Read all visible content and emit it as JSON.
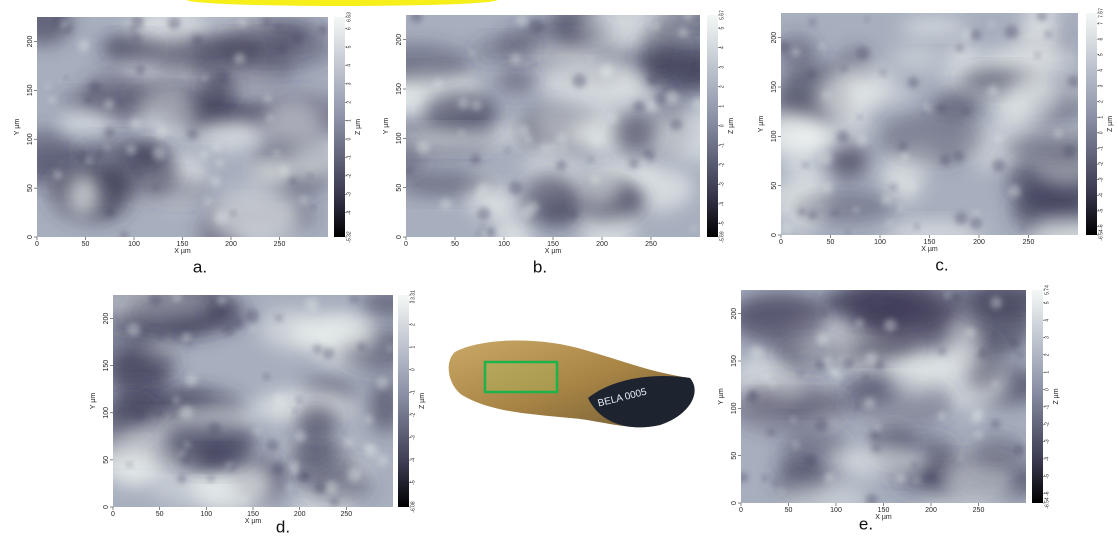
{
  "panels": [
    {
      "label": "a.",
      "x_axis_label": "X µm",
      "y_axis_label": "Y µm",
      "z_axis_label": "Z µm",
      "xlim": [
        0,
        300
      ],
      "ylim": [
        0,
        225
      ],
      "xticks": [
        0,
        50,
        100,
        150,
        200,
        250
      ],
      "yticks": [
        0,
        50,
        100,
        150,
        200
      ],
      "zlim": [
        -5.32,
        6.63
      ],
      "zticks": [
        -5.32,
        -4,
        -3,
        -2,
        -1,
        0,
        1,
        2,
        3,
        4,
        5,
        6,
        6.63
      ]
    },
    {
      "label": "b.",
      "x_axis_label": "X µm",
      "y_axis_label": "Y µm",
      "z_axis_label": "Z µm",
      "xlim": [
        0,
        300
      ],
      "ylim": [
        0,
        225
      ],
      "xticks": [
        0,
        50,
        100,
        150,
        200,
        250
      ],
      "yticks": [
        0,
        50,
        100,
        150,
        200
      ],
      "zlim": [
        -5.69,
        5.67
      ],
      "zticks": [
        -5.69,
        -5,
        -4,
        -3,
        -2,
        -1,
        0,
        1,
        2,
        3,
        4,
        5,
        5.67
      ]
    },
    {
      "label": "c.",
      "x_axis_label": "X µm",
      "y_axis_label": "Y µm",
      "z_axis_label": "Z µm",
      "xlim": [
        0,
        300
      ],
      "ylim": [
        0,
        225
      ],
      "xticks": [
        0,
        50,
        100,
        150,
        200,
        250
      ],
      "yticks": [
        0,
        50,
        100,
        150,
        200
      ],
      "zlim": [
        -6.54,
        7.67
      ],
      "zticks": [
        -6.54,
        -6,
        -5,
        -4,
        -3,
        -2,
        -1,
        0,
        1,
        2,
        3,
        4,
        5,
        6,
        7,
        7.67
      ]
    },
    {
      "label": "d.",
      "x_axis_label": "X µm",
      "y_axis_label": "Y µm",
      "z_axis_label": "Z µm",
      "xlim": [
        0,
        300
      ],
      "ylim": [
        0,
        225
      ],
      "xticks": [
        0,
        50,
        100,
        150,
        200,
        250
      ],
      "yticks": [
        0,
        50,
        100,
        150,
        200
      ],
      "zlim": [
        -6.08,
        3.31
      ],
      "zticks": [
        -6.08,
        -5,
        -4,
        -3,
        -2,
        -1,
        0,
        1,
        2,
        3,
        3.31
      ]
    },
    {
      "label": "e.",
      "x_axis_label": "X µm",
      "y_axis_label": "Y µm",
      "z_axis_label": "Z µm",
      "xlim": [
        0,
        300
      ],
      "ylim": [
        0,
        225
      ],
      "xticks": [
        0,
        50,
        100,
        150,
        200,
        250
      ],
      "yticks": [
        0,
        50,
        100,
        150,
        200
      ],
      "zlim": [
        -6.54,
        5.74
      ],
      "zticks": [
        -6.54,
        -6,
        -5,
        -4,
        -3,
        -2,
        -1,
        0,
        1,
        2,
        3,
        4,
        5,
        5.74
      ]
    }
  ],
  "photo": {
    "label": "BELA 0005"
  }
}
